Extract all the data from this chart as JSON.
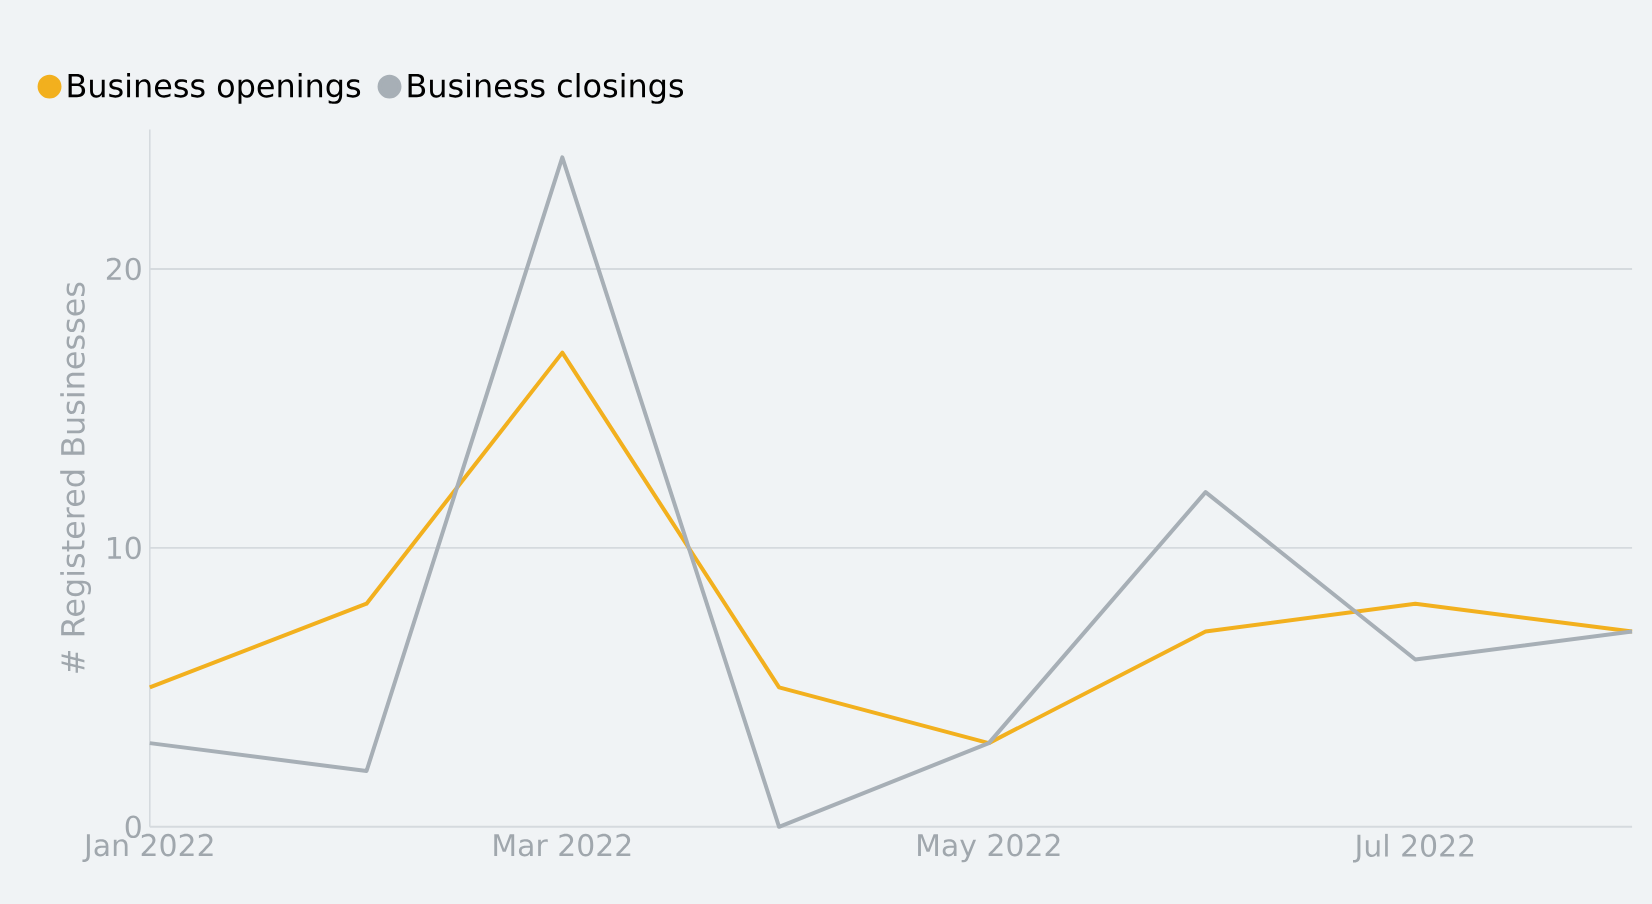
{
  "chart_data": {
    "type": "line",
    "ylabel": "# Registered Businesses",
    "x": [
      "2022-01",
      "2022-02",
      "2022-03",
      "2022-04",
      "2022-05",
      "2022-06",
      "2022-07",
      "2022-08"
    ],
    "series": [
      {
        "name": "Business openings",
        "color": "#f2b01e",
        "values": [
          5,
          8,
          17,
          5,
          3,
          7,
          8,
          7
        ]
      },
      {
        "name": "Business closings",
        "color": "#a7afb6",
        "values": [
          3,
          2,
          24,
          0,
          3,
          12,
          6,
          7
        ]
      }
    ],
    "xlim": [
      "2022-01",
      "2022-08"
    ],
    "xticks": [
      {
        "value": "2022-01",
        "label": "Jan 2022"
      },
      {
        "value": "2022-03",
        "label": "Mar 2022"
      },
      {
        "value": "2022-05",
        "label": "May 2022"
      },
      {
        "value": "2022-07",
        "label": "Jul 2022"
      }
    ],
    "ylim": [
      0,
      25
    ],
    "yticks": [
      0,
      10,
      20
    ],
    "grid": "y",
    "legend": "top left",
    "marker": "none",
    "line_style": "solid"
  }
}
